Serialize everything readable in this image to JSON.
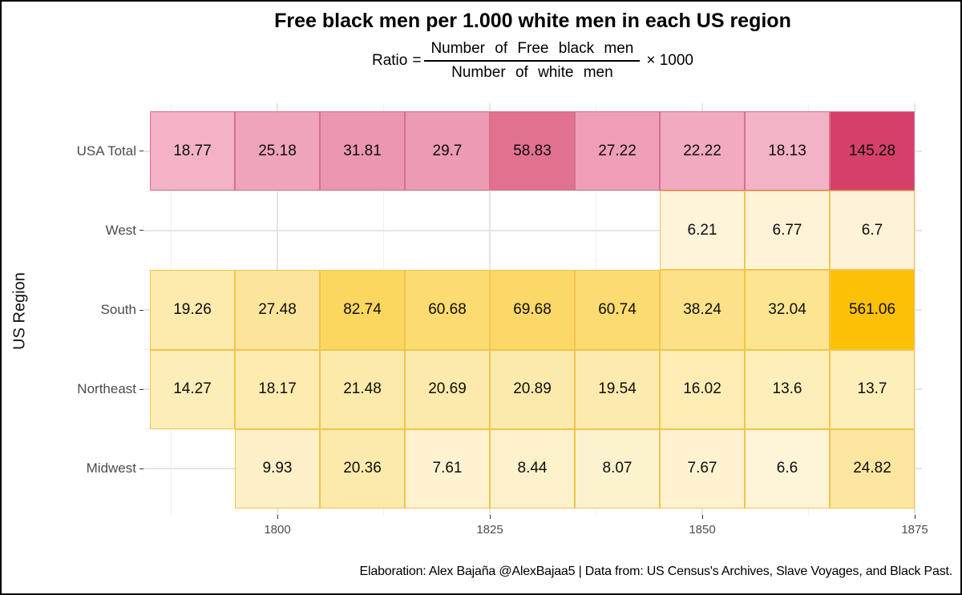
{
  "title": "Free black men per 1.000 white men in each US region",
  "formula": {
    "lhs": "Ratio",
    "equals": "=",
    "numerator": "Number of Free black men",
    "denominator": "Number of white men",
    "multiplier": "× 1000"
  },
  "axes": {
    "y_label": "US Region",
    "x_tick_labels": [
      "1800",
      "1825",
      "1850",
      "1875"
    ]
  },
  "caption": "Elaboration: Alex Bajaña @AlexBajaa5 | Data from: US Census's Archives, Slave Voyages, and Black Past.",
  "colors": {
    "grid_major": "#E4E4E4",
    "grid_minor": "#EFEFEF",
    "axis_text": "#4B4B4B",
    "tick": "#333333",
    "value_text": "#0D0D0D",
    "pink_border": "#D5708E",
    "gold_border": "#F1C44A",
    "frame": "#000000"
  },
  "chart_data": {
    "type": "heatmap",
    "title": "Free black men per 1.000 white men in each US region",
    "xlabel": "",
    "ylabel": "US Region",
    "x": [
      1790,
      1800,
      1810,
      1820,
      1830,
      1840,
      1850,
      1860,
      1870
    ],
    "x_range": [
      1785,
      1875
    ],
    "x_tick_years": [
      1800,
      1825,
      1850,
      1875
    ],
    "x_minor_years": [
      1787.5,
      1812.5,
      1837.5,
      1862.5
    ],
    "rows": [
      "USA Total",
      "West",
      "South",
      "Northeast",
      "Midwest"
    ],
    "grid": "on",
    "legend": "none",
    "series": [
      {
        "name": "USA Total",
        "palette": "pink",
        "values": [
          18.77,
          25.18,
          31.81,
          29.7,
          58.83,
          27.22,
          22.22,
          18.13,
          145.28
        ],
        "fills": [
          "#F3B2C5",
          "#F0A4BB",
          "#EC97B1",
          "#ED9AB3",
          "#E07290",
          "#EE9FB6",
          "#F1AABF",
          "#F3B3C6",
          "#D54069"
        ]
      },
      {
        "name": "West",
        "palette": "gold",
        "values": [
          null,
          null,
          null,
          null,
          null,
          null,
          6.21,
          6.77,
          6.7
        ],
        "fills": [
          null,
          null,
          null,
          null,
          null,
          null,
          "#FEF4DA",
          "#FEF3D7",
          "#FEF3D8"
        ]
      },
      {
        "name": "South",
        "palette": "gold",
        "values": [
          19.26,
          27.48,
          82.74,
          60.68,
          69.68,
          60.74,
          38.24,
          32.04,
          561.06
        ],
        "fills": [
          "#FDEAAD",
          "#FCE59B",
          "#FBD75F",
          "#FCDB71",
          "#FBD867",
          "#FCDB71",
          "#FCE188",
          "#FCE491",
          "#FCC106"
        ]
      },
      {
        "name": "Northeast",
        "palette": "gold",
        "values": [
          14.27,
          18.17,
          21.48,
          20.69,
          20.89,
          19.54,
          16.02,
          13.6,
          13.7
        ],
        "fills": [
          "#FDEDB8",
          "#FDEBB0",
          "#FCEAAA",
          "#FCEAAC",
          "#FCEAAC",
          "#FDEAAE",
          "#FDECB4",
          "#FDEEBA",
          "#FDEEBA"
        ]
      },
      {
        "name": "Midwest",
        "palette": "gold",
        "values": [
          null,
          9.93,
          20.36,
          7.61,
          8.44,
          8.07,
          7.67,
          6.6,
          24.82
        ],
        "fills": [
          null,
          "#FDF0C6",
          "#FCEAAC",
          "#FEF2D0",
          "#FDF1CB",
          "#FDF2CE",
          "#FEF2D0",
          "#FEF4D8",
          "#FCE6A0"
        ]
      }
    ]
  }
}
